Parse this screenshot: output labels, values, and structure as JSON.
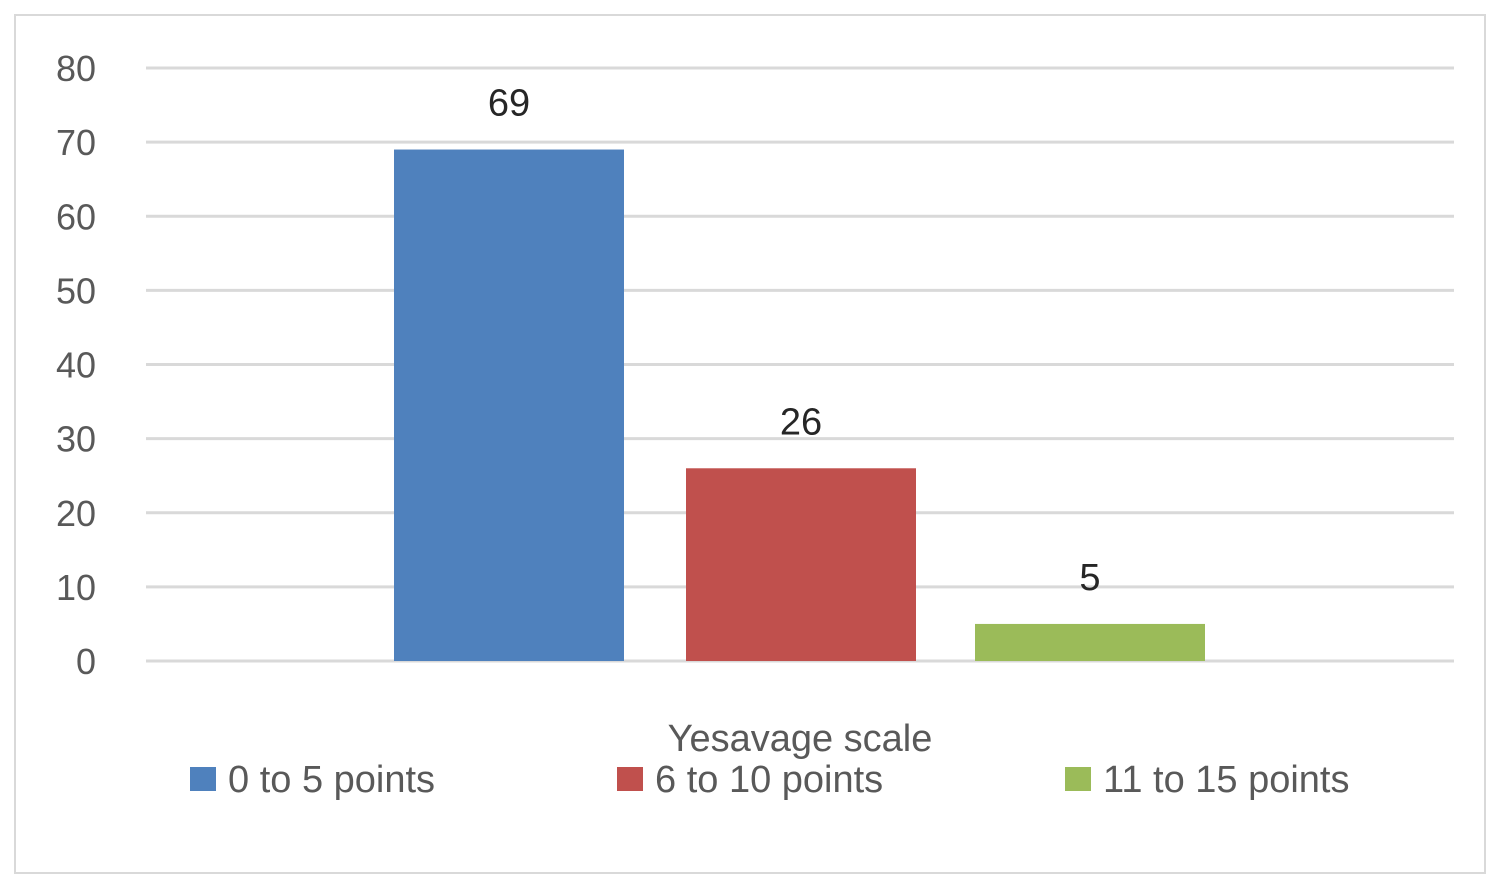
{
  "chart_data": {
    "type": "bar",
    "title": "",
    "xlabel": "Yesavage scale",
    "ylabel": "",
    "ylim": [
      0,
      80
    ],
    "yticks": [
      0,
      10,
      20,
      30,
      40,
      50,
      60,
      70,
      80
    ],
    "grid": true,
    "legend_position": "bottom",
    "series": [
      {
        "name": "0 to 5 points",
        "value": 69,
        "color": "#4f81bd"
      },
      {
        "name": "6 to 10 points",
        "value": 26,
        "color": "#c0504d"
      },
      {
        "name": "11 to 15 points",
        "value": 5,
        "color": "#9bbb59"
      }
    ]
  }
}
